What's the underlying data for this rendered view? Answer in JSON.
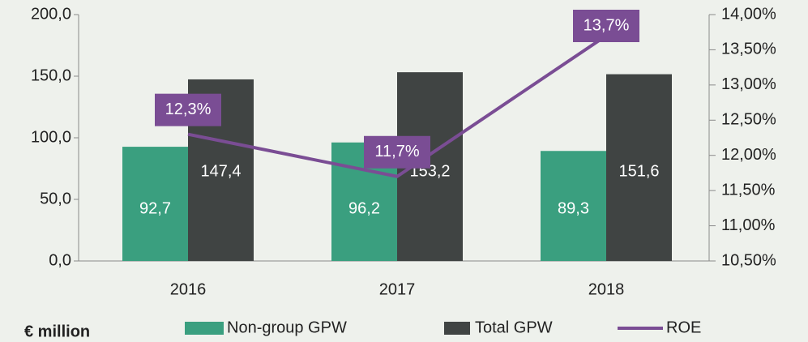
{
  "chart_data": {
    "type": "bar",
    "unit_label": "€ million",
    "categories": [
      "2016",
      "2017",
      "2018"
    ],
    "series": [
      {
        "name": "Non-group GPW",
        "color": "#3a9f7f",
        "values": [
          92.7,
          96.2,
          89.3
        ],
        "value_labels": [
          "92,7",
          "96,2",
          "89,3"
        ]
      },
      {
        "name": "Total GPW",
        "color": "#404443",
        "values": [
          147.4,
          153.2,
          151.6
        ],
        "value_labels": [
          "147,4",
          "153,2",
          "151,6"
        ]
      },
      {
        "name": "ROE",
        "type": "line",
        "axis": "y2",
        "color": "#7a4d94",
        "values": [
          12.3,
          11.7,
          13.7
        ],
        "value_labels": [
          "12,3%",
          "11,7%",
          "13,7%"
        ]
      }
    ],
    "ylim": [
      0,
      200
    ],
    "yticks": [
      {
        "value": 0,
        "label": "0,0"
      },
      {
        "value": 50,
        "label": "50,0"
      },
      {
        "value": 100,
        "label": "100,0"
      },
      {
        "value": 150,
        "label": "150,0"
      },
      {
        "value": 200,
        "label": "200,0"
      }
    ],
    "y2lim": [
      10.5,
      14
    ],
    "y2ticks": [
      {
        "value": 10.5,
        "label": "10,50%"
      },
      {
        "value": 11,
        "label": "11,00%"
      },
      {
        "value": 11.5,
        "label": "11,50%"
      },
      {
        "value": 12,
        "label": "12,00%"
      },
      {
        "value": 12.5,
        "label": "12,50%"
      },
      {
        "value": 13,
        "label": "13,00%"
      },
      {
        "value": 13.5,
        "label": "13,50%"
      },
      {
        "value": 14,
        "label": "14,00%"
      }
    ],
    "grid": false
  }
}
